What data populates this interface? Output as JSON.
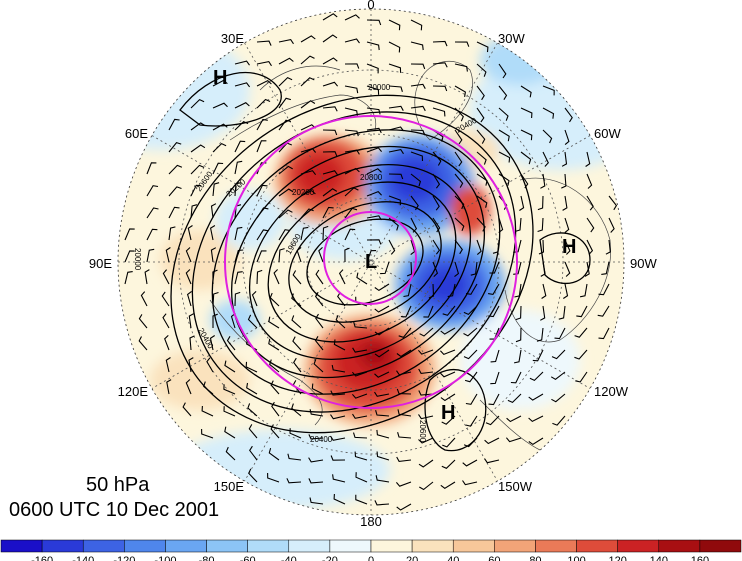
{
  "caption": {
    "level": "50 hPa",
    "time": "0600 UTC 10 Dec 2001"
  },
  "longitude_labels": {
    "top": "0",
    "top_right": "30W",
    "right_upper": "60W",
    "right": "90W",
    "right_lower": "120W",
    "bottom_right": "150W",
    "bottom": "180",
    "bottom_left": "150E",
    "left_lower": "120E",
    "left": "90E",
    "left_upper": "60E",
    "top_left": "30E"
  },
  "pressure_centers": [
    {
      "label": "L",
      "type": "low"
    },
    {
      "label": "H",
      "type": "high"
    },
    {
      "label": "H",
      "type": "high"
    },
    {
      "label": "H",
      "type": "high"
    }
  ],
  "contour_labels": [
    "20200",
    "20400",
    "20600",
    "20000",
    "20800",
    "20400",
    "20200",
    "19600",
    "20000",
    "20400",
    "20600"
  ],
  "colorbar": {
    "ticks": [
      "-160",
      "-140",
      "-120",
      "-100",
      "-80",
      "-60",
      "-40",
      "-20",
      "0",
      "20",
      "40",
      "60",
      "80",
      "100",
      "120",
      "140",
      "160"
    ],
    "colors": [
      "#1a0fc8",
      "#2a3ad8",
      "#3d63e4",
      "#4f86ec",
      "#6aa6f2",
      "#8cc4f6",
      "#b0dcf9",
      "#d6eefb",
      "#eef8fc",
      "#fdf6dd",
      "#fae2bd",
      "#f7c79a",
      "#f2a478",
      "#ea7a58",
      "#de4c3a",
      "#cb2224",
      "#a80f12",
      "#900a0c"
    ]
  },
  "colors": {
    "magenta_circle": "#e020e0",
    "contour": "#000000",
    "land_outline": "#444444"
  }
}
